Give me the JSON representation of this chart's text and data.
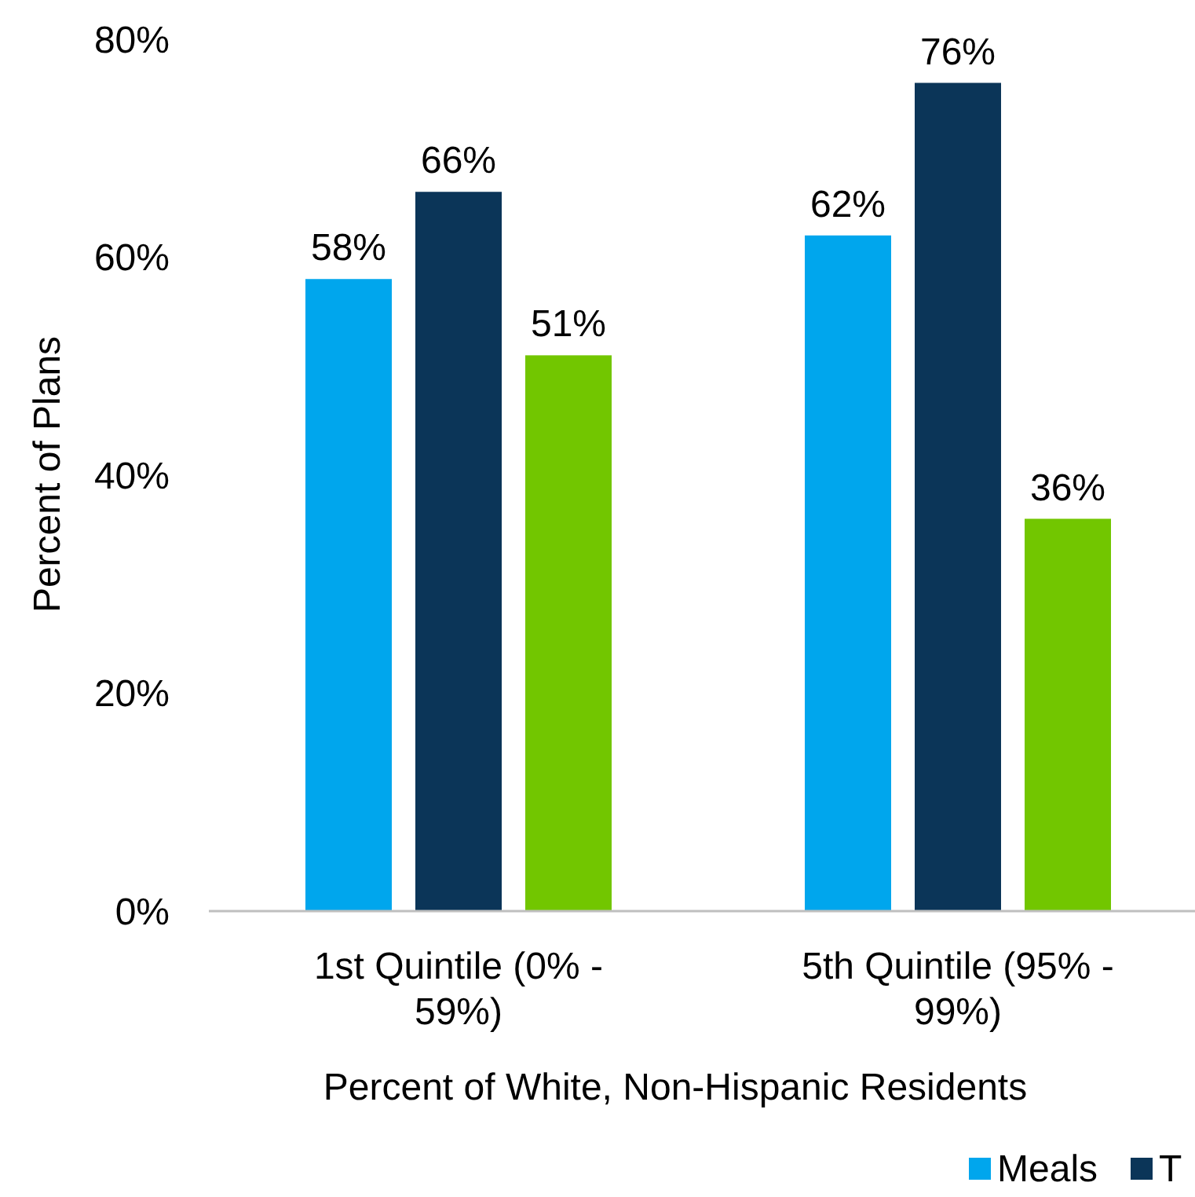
{
  "chart_data": {
    "type": "bar",
    "xlabel": "Percent of White, Non-Hispanic Residents",
    "ylabel": "Percent of Plans",
    "categories": [
      "1st Quintile (0% - 59%)",
      "5th Quintile (95% - 99%)"
    ],
    "series": [
      {
        "name": "Meals",
        "color": "#00a6ed",
        "values": [
          58,
          62
        ],
        "value_labels": [
          "58%",
          "62%"
        ]
      },
      {
        "name": "T",
        "color": "#0b3558",
        "values": [
          66,
          76
        ],
        "value_labels": [
          "66%",
          "76%"
        ]
      },
      {
        "color": "#72c600",
        "values": [
          51,
          36
        ],
        "value_labels": [
          "51%",
          "36%"
        ]
      }
    ],
    "ylim": [
      0,
      80
    ],
    "yticks": [
      {
        "value": 0,
        "label": "0%"
      },
      {
        "value": 20,
        "label": "20%"
      },
      {
        "value": 40,
        "label": "40%"
      },
      {
        "value": 60,
        "label": "60%"
      },
      {
        "value": 80,
        "label": "80%"
      }
    ],
    "legend": "bottom right"
  }
}
